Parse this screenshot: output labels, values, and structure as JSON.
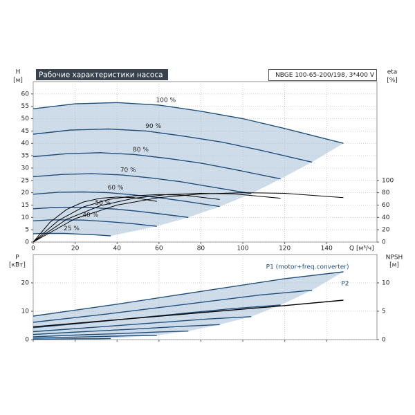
{
  "chart_data": [
    {
      "type": "line",
      "title": "Рабочие характеристики насоса",
      "subtitle": "NBGE 100-65-200/198, 3*400 V",
      "ylabel": "H",
      "yunit": "[м]",
      "y2label": "eta",
      "y2unit": "[%]",
      "xlabel": "Q [м³/ч]",
      "xlim": [
        0,
        164
      ],
      "xticks": [
        0,
        20,
        40,
        60,
        80,
        100,
        120,
        140
      ],
      "ylim": [
        0,
        65
      ],
      "yticks": [
        0,
        5,
        10,
        15,
        20,
        25,
        30,
        35,
        40,
        45,
        50,
        55,
        60
      ],
      "y2lim": [
        0,
        260
      ],
      "y2ticks": [
        0,
        20,
        40,
        60,
        80,
        100
      ],
      "grid": true,
      "series": [
        {
          "name": "100 %",
          "color": "#1f4e79",
          "x": [
            0,
            20,
            40,
            60,
            80,
            100,
            120,
            148
          ],
          "values": [
            54,
            56,
            56.5,
            55.5,
            53,
            50,
            46,
            40
          ]
        },
        {
          "name": "90 %",
          "color": "#1f4e79",
          "x": [
            0,
            18,
            36,
            54,
            72,
            90,
            108,
            133
          ],
          "values": [
            43.7,
            45.4,
            45.8,
            45,
            42.9,
            40.5,
            37.3,
            32.4
          ]
        },
        {
          "name": "80 %",
          "color": "#1f4e79",
          "x": [
            0,
            16,
            32,
            48,
            64,
            80,
            96,
            118
          ],
          "values": [
            34.6,
            35.8,
            36.2,
            35.5,
            33.9,
            32,
            29.4,
            25.6
          ]
        },
        {
          "name": "70 %",
          "color": "#1f4e79",
          "x": [
            0,
            14,
            28,
            42,
            56,
            70,
            84,
            104
          ],
          "values": [
            26.5,
            27.4,
            27.7,
            27.2,
            26,
            24.5,
            22.5,
            19.6
          ]
        },
        {
          "name": "60 %",
          "color": "#1f4e79",
          "x": [
            0,
            12,
            24,
            36,
            48,
            60,
            72,
            89
          ],
          "values": [
            19.4,
            20.2,
            20.3,
            20,
            19.1,
            18,
            16.6,
            14.4
          ]
        },
        {
          "name": "50 %",
          "color": "#1f4e79",
          "x": [
            0,
            10,
            20,
            30,
            40,
            50,
            60,
            74
          ],
          "values": [
            13.5,
            14,
            14.1,
            13.9,
            13.3,
            12.5,
            11.5,
            10
          ]
        },
        {
          "name": "40 %",
          "color": "#1f4e79",
          "x": [
            0,
            8,
            16,
            24,
            32,
            40,
            48,
            59
          ],
          "values": [
            8.6,
            9,
            9,
            8.9,
            8.5,
            8,
            7.4,
            6.4
          ]
        },
        {
          "name": "25 %",
          "color": "#1f4e79",
          "x": [
            0,
            5,
            10,
            15,
            20,
            25,
            30,
            37
          ],
          "values": [
            3.4,
            3.5,
            3.5,
            3.5,
            3.3,
            3.1,
            2.9,
            2.5
          ]
        },
        {
          "color": "#000000",
          "axis": "y2",
          "x": [
            0,
            20,
            40,
            60,
            80,
            100,
            120,
            148
          ],
          "values": [
            0,
            38,
            60,
            72,
            78,
            80,
            79,
            72
          ]
        },
        {
          "color": "#000000",
          "axis": "y2",
          "x": [
            0,
            16,
            32,
            48,
            64,
            80,
            96,
            118
          ],
          "values": [
            0,
            37,
            59,
            71,
            77,
            79,
            78,
            71
          ]
        },
        {
          "color": "#000000",
          "axis": "y2",
          "x": [
            0,
            12,
            24,
            36,
            48,
            60,
            72,
            89
          ],
          "values": [
            0,
            35,
            57,
            69,
            75,
            77,
            76,
            69
          ]
        },
        {
          "color": "#000000",
          "axis": "y2",
          "x": [
            0,
            8,
            16,
            24,
            32,
            40,
            48,
            59
          ],
          "values": [
            0,
            32,
            53,
            65,
            71,
            73,
            72,
            66
          ]
        }
      ]
    },
    {
      "type": "line",
      "ylabel": "P",
      "yunit": "[кВт]",
      "y2label": "NPSH",
      "y2unit": "[м]",
      "ylim": [
        0,
        30
      ],
      "yticks": [
        0,
        10,
        20
      ],
      "y2lim": [
        0,
        15
      ],
      "y2ticks": [
        0,
        5,
        10
      ],
      "grid": true,
      "series": [
        {
          "name": "P1 (motor+freq.converter)",
          "color": "#1f4e79",
          "x": [
            0,
            40,
            80,
            120,
            148
          ],
          "values": [
            8.3,
            12.5,
            17,
            21.5,
            23.9
          ]
        },
        {
          "color": "#1f4e79",
          "x": [
            0,
            36,
            72,
            108,
            133
          ],
          "values": [
            6.1,
            9.1,
            12.4,
            15.7,
            17.4
          ]
        },
        {
          "color": "#1f4e79",
          "x": [
            0,
            32,
            64,
            96,
            118
          ],
          "values": [
            4.2,
            6.4,
            8.7,
            11,
            12.2
          ]
        },
        {
          "color": "#1f4e79",
          "x": [
            0,
            28,
            56,
            84,
            104
          ],
          "values": [
            2.8,
            4.3,
            5.8,
            7.3,
            8.1
          ]
        },
        {
          "color": "#1f4e79",
          "x": [
            0,
            24,
            48,
            72,
            89
          ],
          "values": [
            1.8,
            2.8,
            3.7,
            4.7,
            5.3
          ]
        },
        {
          "color": "#1f4e79",
          "x": [
            0,
            20,
            40,
            60,
            74
          ],
          "values": [
            1,
            1.6,
            2.1,
            2.7,
            3
          ]
        },
        {
          "color": "#1f4e79",
          "x": [
            0,
            16,
            32,
            48,
            59
          ],
          "values": [
            0.5,
            0.8,
            1.1,
            1.4,
            1.5
          ]
        },
        {
          "color": "#1f4e79",
          "x": [
            0,
            10,
            20,
            30,
            37
          ],
          "values": [
            0.1,
            0.2,
            0.3,
            0.3,
            0.4
          ]
        },
        {
          "name": "P2",
          "color": "#000000",
          "x": [
            0,
            40,
            80,
            120,
            148
          ],
          "values": [
            4.5,
            7,
            9.5,
            12,
            13.9
          ]
        }
      ]
    }
  ]
}
